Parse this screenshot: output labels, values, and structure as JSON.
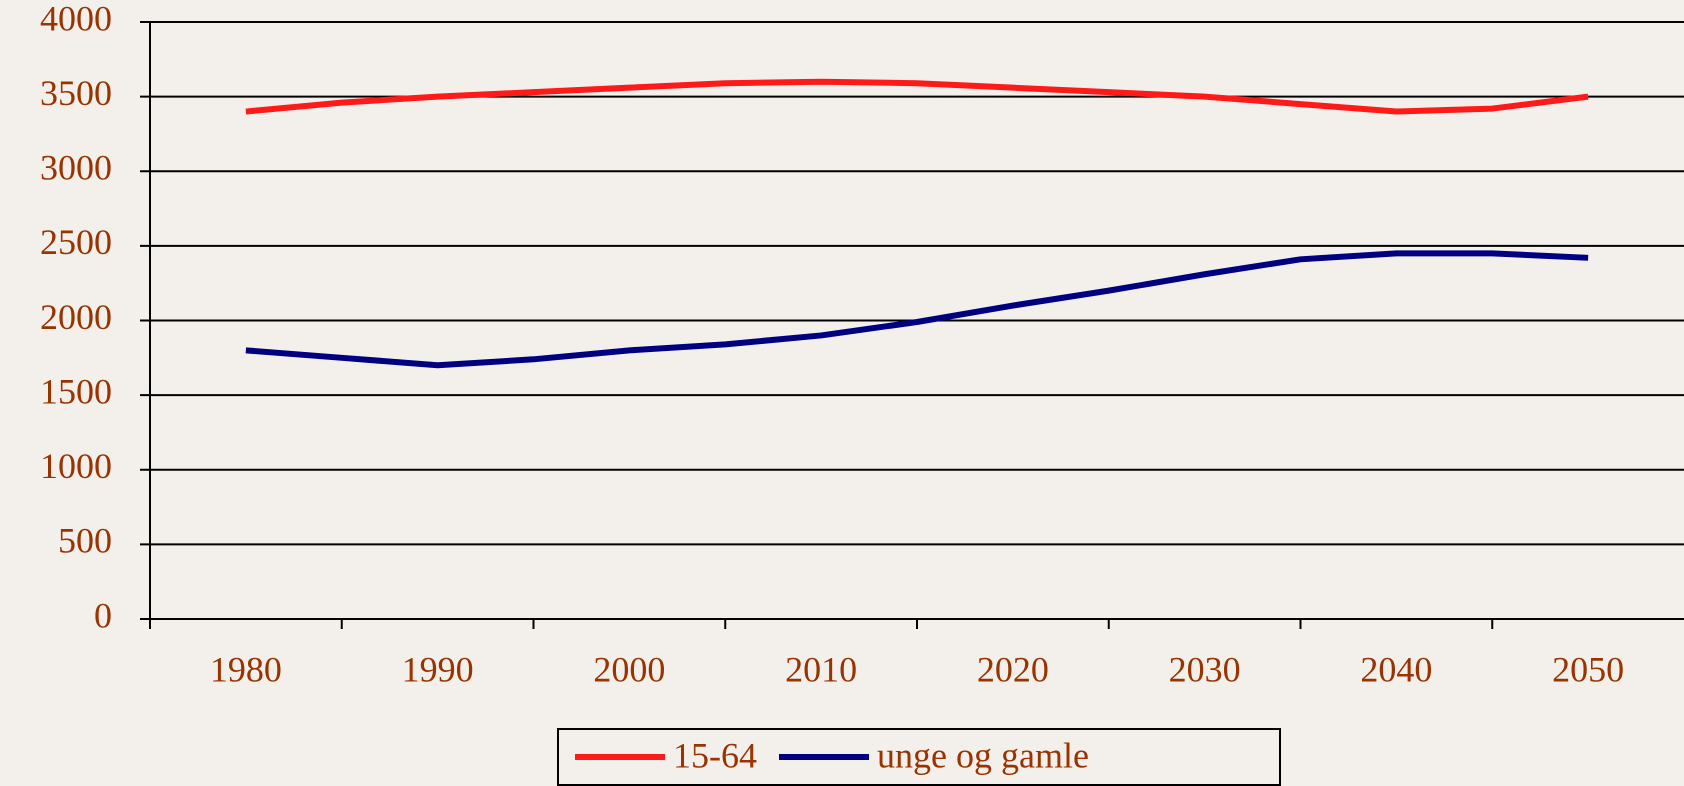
{
  "chart_data": {
    "type": "line",
    "x": [
      1980,
      1985,
      1990,
      1995,
      2000,
      2005,
      2010,
      2015,
      2020,
      2025,
      2030,
      2035,
      2040,
      2045,
      2050
    ],
    "series": [
      {
        "name": "15-64",
        "color": "#ff1a1a",
        "values": [
          3400,
          3460,
          3500,
          3530,
          3560,
          3590,
          3600,
          3590,
          3560,
          3530,
          3500,
          3450,
          3400,
          3420,
          3500
        ]
      },
      {
        "name": "unge og gamle",
        "color": "#000080",
        "values": [
          1800,
          1750,
          1700,
          1740,
          1800,
          1840,
          1900,
          1990,
          2100,
          2200,
          2310,
          2410,
          2450,
          2450,
          2420
        ]
      }
    ],
    "xlim": [
      1975,
      2055
    ],
    "xticks": [
      1980,
      1990,
      2000,
      2010,
      2020,
      2030,
      2040,
      2050
    ],
    "xtick_marks": [
      1975,
      1985,
      1995,
      2005,
      2015,
      2025,
      2035,
      2045
    ],
    "ylim": [
      0,
      4000
    ],
    "yticks": [
      0,
      500,
      1000,
      1500,
      2000,
      2500,
      3000,
      3500,
      4000
    ],
    "grid": true,
    "legend": "bottom"
  }
}
